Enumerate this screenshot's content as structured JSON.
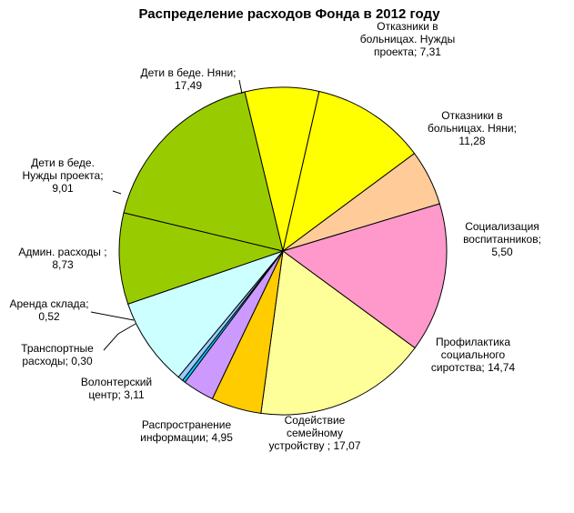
{
  "chart_data": {
    "type": "pie",
    "title": "Распределение расходов Фонда в 2012 году",
    "legend": "none",
    "slices": [
      {
        "label": [
          "Отказники в",
          "больницах. Нужды",
          "проекта; 7,31"
        ],
        "value": 7.31,
        "color": "#ffff00"
      },
      {
        "label": [
          "Отказники в",
          "больницах. Няни;",
          "11,28"
        ],
        "value": 11.28,
        "color": "#ffff00"
      },
      {
        "label": [
          "Социализация",
          "воспитанников;",
          "5,50"
        ],
        "value": 5.5,
        "color": "#ffcc99"
      },
      {
        "label": [
          "Профилактика",
          "социального",
          "сиротства; 14,74"
        ],
        "value": 14.74,
        "color": "#ff99cc"
      },
      {
        "label": [
          "Содействие",
          "семейному",
          "устройству ; 17,07"
        ],
        "value": 17.07,
        "color": "#ffff99"
      },
      {
        "label": [
          "Распространение",
          "информации; 4,95"
        ],
        "value": 4.95,
        "color": "#ffcc00"
      },
      {
        "label": [
          "Волонтерский",
          "центр; 3,11"
        ],
        "value": 3.11,
        "color": "#cc99ff"
      },
      {
        "label": [
          "Транспортные",
          "расходы; 0,30"
        ],
        "value": 0.3,
        "color": "#00ccff"
      },
      {
        "label": [
          "Аренда склада;",
          "0,52"
        ],
        "value": 0.52,
        "color": "#99ccff"
      },
      {
        "label": [
          "Админ. расходы ;",
          "8,73"
        ],
        "value": 8.73,
        "color": "#ccffff"
      },
      {
        "label": [
          "Дети в беде.",
          "Нужды проекта;",
          "9,01"
        ],
        "value": 9.01,
        "color": "#99cc00"
      },
      {
        "label": [
          "Дети в беде. Няни;",
          "17,49"
        ],
        "value": 17.49,
        "color": "#99cc00"
      }
    ]
  }
}
